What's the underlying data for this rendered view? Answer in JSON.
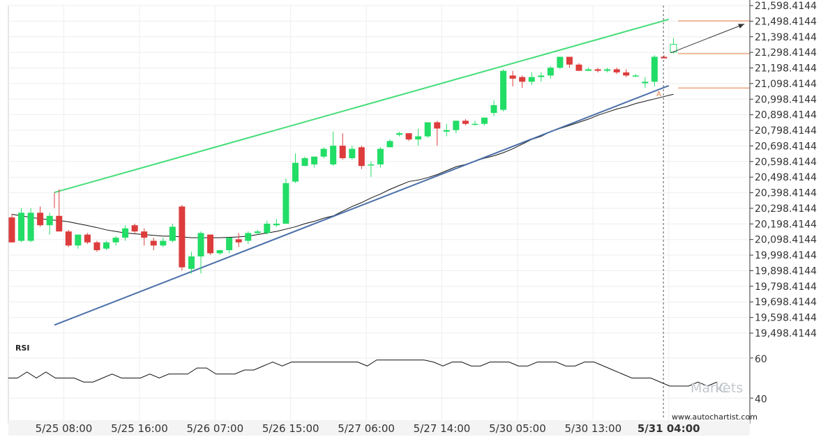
{
  "chart_data": {
    "type": "candlestick",
    "y_axis": {
      "ticks": [
        "21,598.4144",
        "21,498.4144",
        "21,398.4144",
        "21,298.4144",
        "21,198.4144",
        "21,098.4144",
        "20,998.4144",
        "20,898.4144",
        "20,798.4144",
        "20,698.4144",
        "20,598.4144",
        "20,498.4144",
        "20,398.4144",
        "20,298.4144",
        "20,198.4144",
        "20,098.4144",
        "19,998.4144",
        "19,898.4144",
        "19,798.4144",
        "19,698.4144",
        "19,598.4144",
        "19,498.4144"
      ],
      "min": 19498.4144,
      "max": 21598.4144
    },
    "x_axis": {
      "ticks": [
        "5/25 08:00",
        "5/25 16:00",
        "5/26 07:00",
        "5/26 15:00",
        "5/27 06:00",
        "5/27 14:00",
        "5/30 05:00",
        "5/30 13:00",
        "5/31 04:00"
      ],
      "tick_index": [
        5.5,
        13.5,
        21.5,
        29.5,
        37.5,
        45.5,
        53.5,
        61.5,
        69.5
      ],
      "bold_tick": "5/31 04:00"
    },
    "candles": [
      {
        "o": 20240,
        "h": 20260,
        "l": 20080,
        "c": 20080
      },
      {
        "o": 20090,
        "h": 20300,
        "l": 20080,
        "c": 20270
      },
      {
        "o": 20090,
        "h": 20300,
        "l": 20080,
        "c": 20270
      },
      {
        "o": 20270,
        "h": 20310,
        "l": 20180,
        "c": 20190
      },
      {
        "o": 20190,
        "h": 20270,
        "l": 20130,
        "c": 20250
      },
      {
        "o": 20250,
        "h": 20420,
        "l": 20150,
        "c": 20150
      },
      {
        "o": 20150,
        "h": 20160,
        "l": 20050,
        "c": 20060
      },
      {
        "o": 20060,
        "h": 20130,
        "l": 20040,
        "c": 20130
      },
      {
        "o": 20130,
        "h": 20140,
        "l": 20070,
        "c": 20080
      },
      {
        "o": 20080,
        "h": 20090,
        "l": 20020,
        "c": 20030
      },
      {
        "o": 20040,
        "h": 20090,
        "l": 20030,
        "c": 20080
      },
      {
        "o": 20080,
        "h": 20120,
        "l": 20060,
        "c": 20110
      },
      {
        "o": 20110,
        "h": 20190,
        "l": 20090,
        "c": 20170
      },
      {
        "o": 20190,
        "h": 20200,
        "l": 20140,
        "c": 20150
      },
      {
        "o": 20150,
        "h": 20170,
        "l": 20060,
        "c": 20110
      },
      {
        "o": 20090,
        "h": 20110,
        "l": 20030,
        "c": 20060
      },
      {
        "o": 20060,
        "h": 20110,
        "l": 20050,
        "c": 20090
      },
      {
        "o": 20090,
        "h": 20200,
        "l": 20080,
        "c": 20180
      },
      {
        "o": 20310,
        "h": 20320,
        "l": 19900,
        "c": 19920
      },
      {
        "o": 19910,
        "h": 20020,
        "l": 19880,
        "c": 19990
      },
      {
        "o": 19990,
        "h": 20150,
        "l": 19880,
        "c": 20140
      },
      {
        "o": 20130,
        "h": 20130,
        "l": 20000,
        "c": 20010
      },
      {
        "o": 20010,
        "h": 20030,
        "l": 20000,
        "c": 20030
      },
      {
        "o": 20030,
        "h": 20110,
        "l": 20010,
        "c": 20110
      },
      {
        "o": 20100,
        "h": 20140,
        "l": 20050,
        "c": 20080
      },
      {
        "o": 20090,
        "h": 20150,
        "l": 20070,
        "c": 20140
      },
      {
        "o": 20140,
        "h": 20160,
        "l": 20130,
        "c": 20150
      },
      {
        "o": 20140,
        "h": 20220,
        "l": 20130,
        "c": 20200
      },
      {
        "o": 20190,
        "h": 20230,
        "l": 20180,
        "c": 20200
      },
      {
        "o": 20200,
        "h": 20490,
        "l": 20200,
        "c": 20460
      },
      {
        "o": 20470,
        "h": 20650,
        "l": 20460,
        "c": 20590
      },
      {
        "o": 20570,
        "h": 20630,
        "l": 20570,
        "c": 20620
      },
      {
        "o": 20580,
        "h": 20630,
        "l": 20560,
        "c": 20630
      },
      {
        "o": 20630,
        "h": 20690,
        "l": 20620,
        "c": 20680
      },
      {
        "o": 20580,
        "h": 20790,
        "l": 20570,
        "c": 20700
      },
      {
        "o": 20700,
        "h": 20780,
        "l": 20610,
        "c": 20620
      },
      {
        "o": 20620,
        "h": 20700,
        "l": 20610,
        "c": 20680
      },
      {
        "o": 20690,
        "h": 20700,
        "l": 20550,
        "c": 20570
      },
      {
        "o": 20580,
        "h": 20600,
        "l": 20500,
        "c": 20580
      },
      {
        "o": 20580,
        "h": 20690,
        "l": 20560,
        "c": 20680
      },
      {
        "o": 20690,
        "h": 20740,
        "l": 20690,
        "c": 20730
      },
      {
        "o": 20770,
        "h": 20790,
        "l": 20760,
        "c": 20780
      },
      {
        "o": 20780,
        "h": 20780,
        "l": 20730,
        "c": 20740
      },
      {
        "o": 20740,
        "h": 20810,
        "l": 20700,
        "c": 20760
      },
      {
        "o": 20760,
        "h": 20850,
        "l": 20750,
        "c": 20850
      },
      {
        "o": 20850,
        "h": 20860,
        "l": 20700,
        "c": 20810
      },
      {
        "o": 20790,
        "h": 20840,
        "l": 20760,
        "c": 20800
      },
      {
        "o": 20800,
        "h": 20860,
        "l": 20780,
        "c": 20860
      },
      {
        "o": 20860,
        "h": 20870,
        "l": 20830,
        "c": 20840
      },
      {
        "o": 20840,
        "h": 20860,
        "l": 20830,
        "c": 20840
      },
      {
        "o": 20840,
        "h": 20880,
        "l": 20830,
        "c": 20880
      },
      {
        "o": 20910,
        "h": 20990,
        "l": 20890,
        "c": 20960
      },
      {
        "o": 20930,
        "h": 21190,
        "l": 20920,
        "c": 21180
      },
      {
        "o": 21150,
        "h": 21180,
        "l": 21080,
        "c": 21130
      },
      {
        "o": 21140,
        "h": 21150,
        "l": 21070,
        "c": 21110
      },
      {
        "o": 21110,
        "h": 21170,
        "l": 21090,
        "c": 21140
      },
      {
        "o": 21140,
        "h": 21170,
        "l": 21110,
        "c": 21150
      },
      {
        "o": 21150,
        "h": 21210,
        "l": 21130,
        "c": 21200
      },
      {
        "o": 21200,
        "h": 21270,
        "l": 21190,
        "c": 21270
      },
      {
        "o": 21270,
        "h": 21270,
        "l": 21200,
        "c": 21220
      },
      {
        "o": 21220,
        "h": 21230,
        "l": 21180,
        "c": 21180
      },
      {
        "o": 21180,
        "h": 21200,
        "l": 21180,
        "c": 21190
      },
      {
        "o": 21190,
        "h": 21200,
        "l": 21170,
        "c": 21180
      },
      {
        "o": 21180,
        "h": 21200,
        "l": 21170,
        "c": 21190
      },
      {
        "o": 21190,
        "h": 21200,
        "l": 21160,
        "c": 21170
      },
      {
        "o": 21170,
        "h": 21190,
        "l": 21140,
        "c": 21150
      },
      {
        "o": 21150,
        "h": 21160,
        "l": 21140,
        "c": 21150
      },
      {
        "o": 21100,
        "h": 21140,
        "l": 21070,
        "c": 21110
      },
      {
        "o": 21110,
        "h": 21280,
        "l": 21080,
        "c": 21270
      },
      {
        "o": 21270,
        "h": 21280,
        "l": 21260,
        "c": 21260
      },
      {
        "o": 21300,
        "h": 21390,
        "l": 21290,
        "c": 21350
      }
    ],
    "moving_average": [
      20260,
      20250,
      20240,
      20232,
      20225,
      20220,
      20212,
      20200,
      20188,
      20175,
      20160,
      20150,
      20140,
      20135,
      20130,
      20125,
      20120,
      20120,
      20115,
      20110,
      20110,
      20110,
      20110,
      20112,
      20115,
      20120,
      20130,
      20140,
      20150,
      20165,
      20180,
      20200,
      20215,
      20235,
      20250,
      20280,
      20310,
      20335,
      20365,
      20390,
      20420,
      20445,
      20470,
      20480,
      20495,
      20515,
      20540,
      20565,
      20580,
      20600,
      20620,
      20635,
      20655,
      20680,
      20710,
      20740,
      20760,
      20790,
      20810,
      20830,
      20850,
      20870,
      20895,
      20915,
      20935,
      20950,
      20970,
      20985,
      21000,
      21015,
      21030
    ],
    "channel": {
      "upper": {
        "x0": 4.5,
        "y0": 20400,
        "x1": 69.5,
        "y1": 21510
      },
      "lower": {
        "x0": 4.5,
        "y0": 19550,
        "x1": 69.5,
        "y1": 21085
      }
    },
    "levels": [
      21500,
      21290,
      21070
    ],
    "forecast_arrow": {
      "x0": 69.7,
      "y0": 21295,
      "x1": 77.5,
      "y1": 21480
    },
    "pattern_point_label": "A",
    "pattern_point": {
      "x": 68.5,
      "y": 21035
    },
    "rsi": {
      "label": "RSI",
      "ticks": [
        60,
        40
      ],
      "range": [
        30,
        70
      ],
      "values": [
        50,
        50,
        53,
        50,
        53,
        50,
        50,
        50,
        48,
        48,
        50,
        52,
        50,
        50,
        50,
        52,
        50,
        52,
        52,
        52,
        55,
        55,
        52,
        52,
        52,
        54,
        54,
        56,
        58,
        56,
        58,
        58,
        58,
        58,
        58,
        58,
        58,
        58,
        56,
        59,
        59,
        59,
        59,
        59,
        59,
        58,
        56,
        58,
        58,
        56,
        56,
        58,
        58,
        58,
        56,
        56,
        58,
        58,
        58,
        56,
        56,
        58,
        58,
        56,
        54,
        52,
        50,
        50,
        50,
        48,
        46,
        46,
        46,
        48,
        46,
        48
      ]
    },
    "watermark": {
      "pre": "IC",
      "main": "Markets"
    },
    "source": "www.autochartist.com"
  },
  "colors": {
    "bull": "#22dd66",
    "bear": "#dd3c3c",
    "upper_line": "#44dd77",
    "lower_line": "#4a6fa8",
    "level": "#e07840",
    "grid": "#eeeeee",
    "axis": "#333333",
    "forecast": "#333333"
  }
}
